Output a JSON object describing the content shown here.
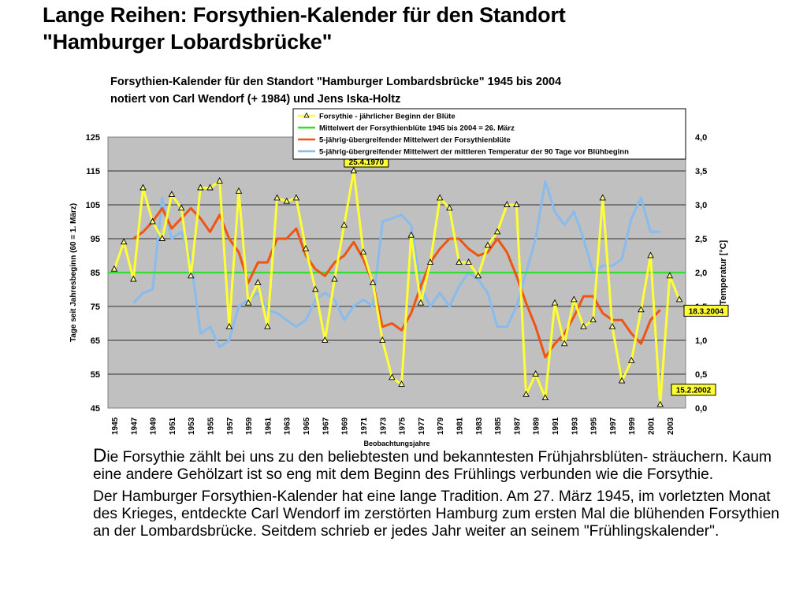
{
  "slide": {
    "title_line1": "Lange Reihen: Forsythien-Kalender für den Standort",
    "title_line2": "\"Hamburger Lobardsbrücke\"",
    "para1_first_letter": "D",
    "para1_rest": "ie Forsythie zählt bei uns zu den beliebtesten und bekanntesten Frühjahrsblüten- sträuchern. Kaum eine andere Gehölzart ist so eng mit dem Beginn des Frühlings verbunden wie die Forsythie.",
    "para2": "Der Hamburger Forsythien-Kalender hat eine lange Tradition. Am 27. März 1945, im vorletzten Monat des Krieges, entdeckte Carl Wendorf im zerstörten Hamburg zum ersten Mal die blühenden Forsythien an der Lombardsbrücke. Seitdem schrieb er jedes Jahr weiter an seinem \"Frühlingskalender\"."
  },
  "chart_data": {
    "type": "line",
    "title": "Forsythien-Kalender für den Standort \"Hamburger Lombardsbrücke\" 1945 bis 2004",
    "subtitle": "notiert  von Carl Wendorf (+ 1984) und Jens Iska-Holtz",
    "xlabel": "Beobachtungsjahre",
    "ylabel": "Tage seit Jahresbeginn (60 = 1. März)",
    "y2label": "Temperatur [°C]",
    "ylim": [
      45,
      125
    ],
    "y2lim": [
      0.0,
      4.0
    ],
    "yticks": [
      "45",
      "55",
      "65",
      "75",
      "85",
      "95",
      "105",
      "115",
      "125"
    ],
    "y2ticks": [
      "0,0",
      "0,5",
      "1,0",
      "1,5",
      "2,0",
      "2,5",
      "3,0",
      "3,5",
      "4,0"
    ],
    "xticks": [
      "1945",
      "1947",
      "1949",
      "1951",
      "1953",
      "1955",
      "1957",
      "1959",
      "1961",
      "1963",
      "1965",
      "1967",
      "1969",
      "1971",
      "1973",
      "1975",
      "1977",
      "1979",
      "1981",
      "1983",
      "1985",
      "1987",
      "1989",
      "1991",
      "1993",
      "1995",
      "1997",
      "1999",
      "2001",
      "2003"
    ],
    "grid": true,
    "legend_position": "top-right",
    "series": [
      {
        "name": "Forsythie - jährlicher Beginn der Blüte",
        "color": "#ffff33",
        "axis": "left",
        "marker": "triangle",
        "x": [
          1945,
          1946,
          1947,
          1948,
          1949,
          1950,
          1951,
          1952,
          1953,
          1954,
          1955,
          1956,
          1957,
          1958,
          1959,
          1960,
          1961,
          1962,
          1963,
          1964,
          1965,
          1966,
          1967,
          1968,
          1969,
          1970,
          1971,
          1972,
          1973,
          1974,
          1975,
          1976,
          1977,
          1978,
          1979,
          1980,
          1981,
          1982,
          1983,
          1984,
          1985,
          1986,
          1987,
          1988,
          1989,
          1990,
          1991,
          1992,
          1993,
          1994,
          1995,
          1996,
          1997,
          1998,
          1999,
          2000,
          2001,
          2002,
          2003,
          2004
        ],
        "values": [
          86,
          94,
          83,
          110,
          100,
          95,
          108,
          104,
          84,
          110,
          110,
          112,
          69,
          109,
          76,
          82,
          69,
          107,
          106,
          107,
          92,
          80,
          65,
          83,
          99,
          115,
          91,
          82,
          65,
          54,
          52,
          96,
          76,
          88,
          107,
          104,
          88,
          88,
          84,
          93,
          97,
          105,
          105,
          49,
          55,
          48,
          76,
          64,
          77,
          69,
          71,
          107,
          69,
          53,
          59,
          74,
          90,
          46,
          84,
          77
        ]
      },
      {
        "name": "Mittelwert der Forsythienblüte 1945 bis 2004 = 26. März",
        "color": "#33dd33",
        "axis": "left",
        "values": [
          85
        ]
      },
      {
        "name": "5-jährig-übergreifender Mittelwert der Forsythienblüte",
        "color": "#ee5511",
        "axis": "left",
        "x": [
          1947,
          1948,
          1949,
          1950,
          1951,
          1952,
          1953,
          1954,
          1955,
          1956,
          1957,
          1958,
          1959,
          1960,
          1961,
          1962,
          1963,
          1964,
          1965,
          1966,
          1967,
          1968,
          1969,
          1970,
          1971,
          1972,
          1973,
          1974,
          1975,
          1976,
          1977,
          1978,
          1979,
          1980,
          1981,
          1982,
          1983,
          1984,
          1985,
          1986,
          1987,
          1988,
          1989,
          1990,
          1991,
          1992,
          1993,
          1994,
          1995,
          1996,
          1997,
          1998,
          1999,
          2000,
          2001,
          2002
        ],
        "values": [
          95,
          97,
          100,
          104,
          98,
          101,
          104,
          101,
          97,
          102,
          95,
          91,
          82,
          88,
          88,
          95,
          95,
          98,
          90,
          86,
          84,
          88,
          90,
          94,
          89,
          82,
          69,
          70,
          68,
          73,
          81,
          88,
          92,
          95,
          95,
          92,
          90,
          91,
          95,
          91,
          84,
          76,
          69,
          60,
          64,
          67,
          72,
          78,
          78,
          73,
          71,
          71,
          67,
          64,
          71,
          74
        ]
      },
      {
        "name": "5-jährig-übergreifender Mittelwert der mittleren Temperatur der 90 Tage vor Blühbeginn",
        "color": "#88bbee",
        "axis": "right",
        "x": [
          1947,
          1948,
          1949,
          1950,
          1951,
          1952,
          1953,
          1954,
          1955,
          1956,
          1957,
          1958,
          1959,
          1960,
          1961,
          1962,
          1963,
          1964,
          1965,
          1966,
          1967,
          1968,
          1969,
          1970,
          1971,
          1972,
          1973,
          1974,
          1975,
          1976,
          1977,
          1978,
          1979,
          1980,
          1981,
          1982,
          1983,
          1984,
          1985,
          1986,
          1987,
          1988,
          1989,
          1990,
          1991,
          1992,
          1993,
          1994,
          1995,
          1996,
          1997,
          1998,
          1999,
          2000,
          2001,
          2002
        ],
        "values": [
          1.55,
          1.7,
          1.75,
          3.1,
          2.5,
          2.6,
          2.2,
          1.1,
          1.2,
          0.9,
          1.0,
          1.5,
          1.6,
          1.7,
          1.45,
          1.4,
          1.3,
          1.2,
          1.3,
          1.6,
          1.7,
          1.6,
          1.3,
          1.5,
          1.6,
          1.5,
          2.75,
          2.8,
          2.85,
          2.7,
          1.8,
          1.5,
          1.7,
          1.5,
          1.8,
          2.0,
          1.9,
          1.7,
          1.2,
          1.2,
          1.5,
          2.0,
          2.5,
          3.35,
          2.9,
          2.7,
          2.9,
          2.5,
          2.0,
          2.1,
          2.1,
          2.2,
          2.8,
          3.1,
          2.6,
          2.6
        ]
      }
    ],
    "annotations": [
      {
        "text": "25.4.1970",
        "x": 1970,
        "y": 115
      },
      {
        "text": "18.3.2004",
        "x": 2004,
        "y": 77
      },
      {
        "text": "15.2.2002",
        "x": 2002,
        "y": 46
      }
    ]
  }
}
